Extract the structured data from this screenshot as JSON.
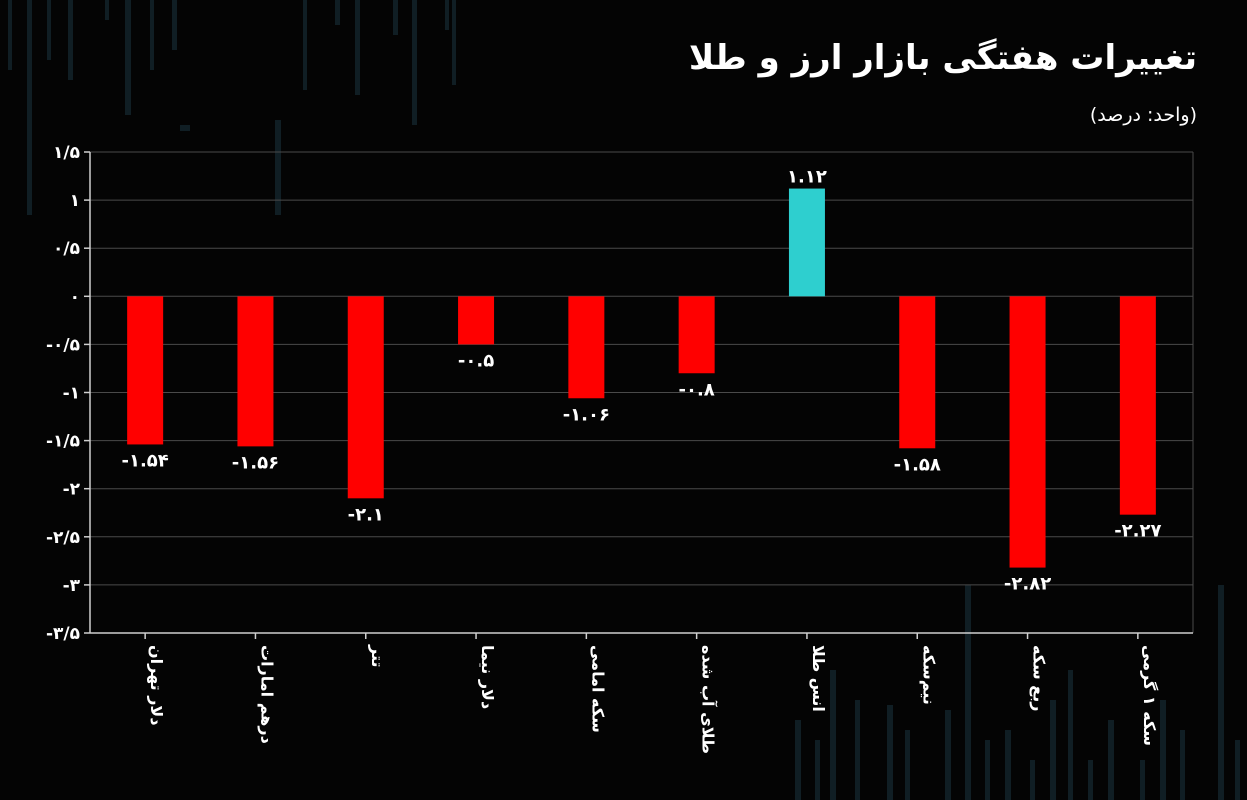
{
  "header": {
    "title": "تغییرات هفتگی بازار ارز و طلا",
    "unit": "(واحد: درصد)"
  },
  "colors": {
    "negative": "#ff0000",
    "positive": "#2ecfcf",
    "grid": "#4a4a4a",
    "axis": "#cfcfcf",
    "background_bars": "#1c3440"
  },
  "chart_data": {
    "type": "bar",
    "categories": [
      "دلار تهران",
      "درهم امارات",
      "تتر",
      "دلار نیما",
      "سکه امامی",
      "طلای آب شده",
      "انس طلا",
      "نیم‌سکه",
      "ربع سکه",
      "سکه ۱ گرمی"
    ],
    "values": [
      -1.54,
      -1.56,
      -2.1,
      -0.5,
      -1.06,
      -0.8,
      1.12,
      -1.58,
      -2.82,
      -2.27
    ],
    "value_labels": [
      "-۱.۵۴",
      "-۱.۵۶",
      "-۲.۱",
      "-۰.۵",
      "-۱.۰۶",
      "-۰.۸",
      "۱.۱۲",
      "-۱.۵۸",
      "-۲.۸۲",
      "-۲.۲۷"
    ],
    "yticks": [
      1.5,
      1,
      0.5,
      0,
      -0.5,
      -1,
      -1.5,
      -2,
      -2.5,
      -3,
      -3.5
    ],
    "ytick_labels": [
      "۱/۵",
      "۱",
      "۰/۵",
      "۰",
      "-۰/۵",
      "-۱",
      "-۱/۵",
      "-۲",
      "-۲/۵",
      "-۳",
      "-۳/۵"
    ],
    "ylim": [
      -3.5,
      1.5
    ],
    "grid": true,
    "xlabel": "",
    "ylabel": ""
  }
}
